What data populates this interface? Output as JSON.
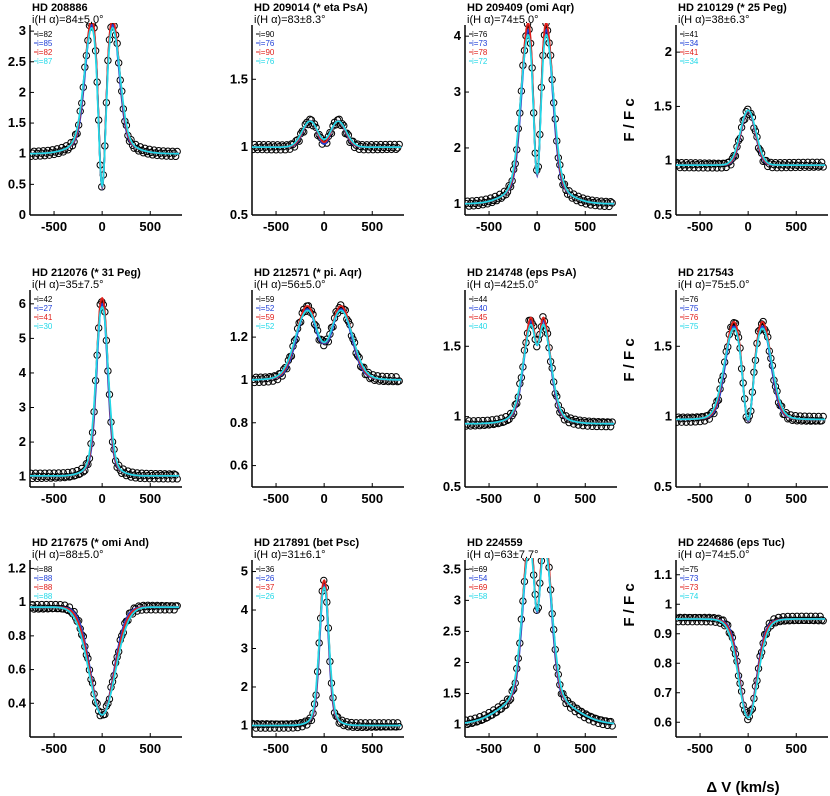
{
  "figure": {
    "xlabel": "Δ V (km/s)",
    "ylabel": "F / F c",
    "colors": {
      "obs": "#000000",
      "black_model": "#000000",
      "blue_model": "#1f3fd6",
      "red_model": "#e0201b",
      "cyan_model": "#22d8e8"
    }
  },
  "chart_data": [
    {
      "type": "line",
      "title": "HD 208886",
      "subtitle": "i(H α)=84±5.0°",
      "legend": [
        "i=82",
        "i=85",
        "i=82",
        "i=87"
      ],
      "xlim": [
        -750,
        830
      ],
      "ylim": [
        0,
        3.1
      ],
      "xticks": [
        -500,
        0,
        500
      ],
      "yticks": [
        0,
        0.5,
        1,
        1.5,
        2,
        2.5,
        3
      ],
      "ytick_labels": [
        "0",
        "0.5",
        "1",
        "1.5",
        "2",
        "2.5",
        "3"
      ],
      "profile": {
        "peak": 2.85,
        "sep": 110,
        "width": 70,
        "wing": 220,
        "wing_amp": 0.35,
        "center": 0.25,
        "base": 1.0,
        "abs": 0
      }
    },
    {
      "type": "line",
      "title": "HD 209014 (* eta PsA)",
      "subtitle": "i(H α)=83±8.3°",
      "legend": [
        "i=90",
        "i=76",
        "i=90",
        "i=76"
      ],
      "xlim": [
        -750,
        830
      ],
      "ylim": [
        0.5,
        1.9
      ],
      "xticks": [
        -500,
        0,
        500
      ],
      "yticks": [
        0.5,
        1,
        1.5
      ],
      "ytick_labels": [
        "0.5",
        "1",
        "1.5"
      ],
      "profile": {
        "peak": 1.8,
        "sep": 140,
        "width": 80,
        "wing": 200,
        "wing_amp": 0.05,
        "center": 0.9,
        "base": 1.0,
        "abs": 0.05
      }
    },
    {
      "type": "line",
      "title": "HD 209409 (omi Aqr)",
      "subtitle": "i(H α)=74±5.0°",
      "legend": [
        "i=76",
        "i=73",
        "i=78",
        "i=72"
      ],
      "xlim": [
        -750,
        830
      ],
      "ylim": [
        0.8,
        4.2
      ],
      "xticks": [
        -500,
        0,
        500
      ],
      "yticks": [
        1,
        2,
        3,
        4
      ],
      "ytick_labels": [
        "1",
        "2",
        "3",
        "4"
      ],
      "profile": {
        "peak": 3.75,
        "sep": 95,
        "width": 70,
        "wing": 230,
        "wing_amp": 0.5,
        "center": 1.3,
        "base": 1.0,
        "abs": 0
      }
    },
    {
      "type": "line",
      "title": "HD 210129 (* 25 Peg)",
      "subtitle": "i(H α)=38±6.3°",
      "legend": [
        "i=41",
        "i=34",
        "i=41",
        "i=34"
      ],
      "xlim": [
        -750,
        830
      ],
      "ylim": [
        0.5,
        2.25
      ],
      "xticks": [
        -500,
        0,
        500
      ],
      "yticks": [
        0.5,
        1,
        1.5,
        2
      ],
      "ytick_labels": [
        "0.5",
        "1",
        "1.5",
        "2"
      ],
      "profile": {
        "peak": 2.15,
        "sep": 25,
        "width": 70,
        "wing": 160,
        "wing_amp": 0.2,
        "center": 2.05,
        "base": 0.96,
        "abs": 0.06
      }
    },
    {
      "type": "line",
      "title": "HD 212076 (* 31 Peg)",
      "subtitle": "i(H α)=35±7.5°",
      "legend": [
        "i=42",
        "i=27",
        "i=41",
        "i=30"
      ],
      "xlim": [
        -750,
        830
      ],
      "ylim": [
        0.7,
        6.4
      ],
      "xticks": [
        -500,
        0,
        500
      ],
      "yticks": [
        1,
        2,
        3,
        4,
        5,
        6
      ],
      "ytick_labels": [
        "1",
        "2",
        "3",
        "4",
        "5",
        "6"
      ],
      "profile": {
        "peak": 5.8,
        "sep": 10,
        "width": 55,
        "wing": 140,
        "wing_amp": 0.4,
        "center": 5.6,
        "base": 1.02,
        "abs": 0
      }
    },
    {
      "type": "line",
      "title": "HD 212571 (* pi. Aqr)",
      "subtitle": "i(H α)=56±5.0°",
      "legend": [
        "i=59",
        "i=52",
        "i=59",
        "i=52"
      ],
      "xlim": [
        -750,
        830
      ],
      "ylim": [
        0.5,
        1.42
      ],
      "xticks": [
        -500,
        0,
        500
      ],
      "yticks": [
        0.6,
        0.8,
        1,
        1.2
      ],
      "ytick_labels": [
        "0.6",
        "0.8",
        "1",
        "1.2"
      ],
      "profile": {
        "peak": 1.3,
        "sep": 180,
        "width": 110,
        "wing": 260,
        "wing_amp": 0.05,
        "center": 1.17,
        "base": 1.0,
        "abs": 0
      }
    },
    {
      "type": "line",
      "title": "HD 214748 (eps PsA)",
      "subtitle": "i(H α)=42±5.0°",
      "legend": [
        "i=44",
        "i=40",
        "i=45",
        "i=40"
      ],
      "xlim": [
        -750,
        830
      ],
      "ylim": [
        0.5,
        1.9
      ],
      "xticks": [
        -500,
        0,
        500
      ],
      "yticks": [
        0.5,
        1,
        1.5
      ],
      "ytick_labels": [
        "0.5",
        "1",
        "1.5"
      ],
      "profile": {
        "peak": 1.62,
        "sep": 70,
        "width": 75,
        "wing": 200,
        "wing_amp": 0.1,
        "center": 1.48,
        "base": 0.95,
        "abs": 0
      }
    },
    {
      "type": "line",
      "title": "HD 217543",
      "subtitle": "i(H α)=75±5.0°",
      "legend": [
        "i=76",
        "i=75",
        "i=76",
        "i=75"
      ],
      "xlim": [
        -750,
        830
      ],
      "ylim": [
        0.5,
        1.9
      ],
      "xticks": [
        -500,
        0,
        500
      ],
      "yticks": [
        0.5,
        1,
        1.5
      ],
      "ytick_labels": [
        "0.5",
        "1",
        "1.5"
      ],
      "profile": {
        "peak": 1.62,
        "sep": 150,
        "width": 90,
        "wing": 240,
        "wing_amp": 0.05,
        "center": 0.93,
        "base": 0.98,
        "abs": 0
      }
    },
    {
      "type": "line",
      "title": "HD 217675 (* omi And)",
      "subtitle": "i(H α)=88±5.0°",
      "legend": [
        "i=88",
        "i=88",
        "i=88",
        "i=88"
      ],
      "xlim": [
        -750,
        830
      ],
      "ylim": [
        0.2,
        1.25
      ],
      "xticks": [
        -500,
        0,
        500
      ],
      "yticks": [
        0.4,
        0.6,
        0.8,
        1,
        1.2
      ],
      "ytick_labels": [
        "0.4",
        "0.6",
        "0.8",
        "1",
        "1.2"
      ],
      "profile": {
        "peak": 0.98,
        "sep": 250,
        "width": 140,
        "wing": 300,
        "wing_amp": 0.0,
        "center": 0.32,
        "base": 0.97,
        "abs": 0.64
      }
    },
    {
      "type": "line",
      "title": "HD 217891 (bet Psc)",
      "subtitle": "i(H α)=31±6.1°",
      "legend": [
        "i=36",
        "i=26",
        "i=37",
        "i=26"
      ],
      "xlim": [
        -750,
        830
      ],
      "ylim": [
        0.7,
        5.3
      ],
      "xticks": [
        -500,
        0,
        500
      ],
      "yticks": [
        1,
        2,
        3,
        4,
        5
      ],
      "ytick_labels": [
        "1",
        "2",
        "3",
        "4",
        "5"
      ],
      "profile": {
        "peak": 4.5,
        "sep": 5,
        "width": 45,
        "wing": 110,
        "wing_amp": 0.3,
        "center": 4.45,
        "base": 1.0,
        "abs": 0
      }
    },
    {
      "type": "line",
      "title": "HD 224559",
      "subtitle": "i(H α)=63±7.7°",
      "legend": [
        "i=69",
        "i=54",
        "i=69",
        "i=58"
      ],
      "xlim": [
        -750,
        830
      ],
      "ylim": [
        0.8,
        3.65
      ],
      "xticks": [
        -500,
        0,
        500
      ],
      "yticks": [
        1,
        1.5,
        2,
        2.5,
        3,
        3.5
      ],
      "ytick_labels": [
        "1",
        "1.5",
        "2",
        "2.5",
        "3",
        "3.5"
      ],
      "profile": {
        "peak": 3.5,
        "sep": 80,
        "width": 70,
        "wing": 300,
        "wing_amp": 0.6,
        "center": 2.7,
        "base": 1.0,
        "abs": 0
      }
    },
    {
      "type": "line",
      "title": "HD 224686 (eps Tuc)",
      "subtitle": "i(H α)=74±5.0°",
      "legend": [
        "i=75",
        "i=73",
        "i=73",
        "i=74"
      ],
      "xlim": [
        -750,
        830
      ],
      "ylim": [
        0.55,
        1.15
      ],
      "xticks": [
        -500,
        0,
        500
      ],
      "yticks": [
        0.6,
        0.7,
        0.8,
        0.9,
        1,
        1.1
      ],
      "ytick_labels": [
        "0.6",
        "0.7",
        "0.8",
        "0.9",
        "1",
        "1.1"
      ],
      "profile": {
        "peak": 0.92,
        "sep": 170,
        "width": 100,
        "wing": 400,
        "wing_amp": 0.0,
        "center": 0.6,
        "base": 0.95,
        "abs": 0.33
      }
    }
  ]
}
